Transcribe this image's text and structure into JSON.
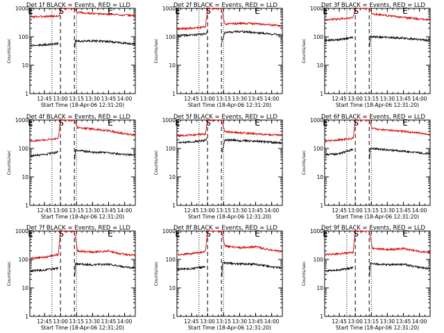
{
  "chart_data": [
    {
      "type": "line",
      "title": "Det 1f BLACK = Events, RED = LLD",
      "xlabel": "Start Time (18-Apr-06 12:31:20)",
      "ylabel": "Counts/sec",
      "yscale": "log",
      "ylim": [
        1,
        1000
      ],
      "y_ticks": [
        "1",
        "10",
        "100",
        "1000"
      ],
      "x_ticks": [
        "12:45",
        "13:00",
        "13:15",
        "13:30",
        "13:45",
        "14:00"
      ],
      "x_range": [
        "12:31:20",
        "14:10"
      ],
      "markers": [
        {
          "label": "E",
          "time": "12:31:20"
        },
        {
          "label": "S",
          "time": "13:00"
        },
        {
          "label": "E",
          "time": "13:46"
        }
      ],
      "vertical_lines": [
        {
          "time": "12:52",
          "style": "dotted"
        },
        {
          "time": "13:00",
          "style": "dashed"
        },
        {
          "time": "13:13",
          "style": "dashed"
        },
        {
          "time": "13:15",
          "style": "dotted"
        }
      ],
      "series": [
        {
          "name": "LLD",
          "color": "#d40000",
          "x": [
            "12:32",
            "12:45",
            "12:59",
            "13:00",
            "13:13",
            "13:16",
            "13:30",
            "13:45",
            "14:00",
            "14:10"
          ],
          "y": [
            500,
            520,
            540,
            1000,
            1000,
            720,
            650,
            620,
            580,
            550
          ]
        },
        {
          "name": "Events",
          "color": "#000000",
          "x": [
            "12:32",
            "12:45",
            "12:58",
            "13:13",
            "13:14",
            "13:16",
            "13:30",
            "13:45",
            "14:00",
            "14:10"
          ],
          "y": [
            50,
            52,
            58,
            30,
            72,
            70,
            72,
            68,
            60,
            55
          ]
        }
      ]
    },
    {
      "type": "line",
      "title": "Det 2f BLACK = Events, RED = LLD",
      "xlabel": "Start Time (18-Apr-06 12:31:20)",
      "ylabel": "Counts/sec",
      "yscale": "log",
      "ylim": [
        1,
        1000
      ],
      "y_ticks": [
        "1",
        "10",
        "100",
        "1000"
      ],
      "x_ticks": [
        "12:45",
        "13:00",
        "13:15",
        "13:30",
        "13:45",
        "14:00"
      ],
      "x_range": [
        "12:31:20",
        "14:10"
      ],
      "markers": [
        {
          "label": "E",
          "time": "12:31:20"
        },
        {
          "label": "S",
          "time": "13:00"
        },
        {
          "label": "E",
          "time": "13:46"
        }
      ],
      "vertical_lines": [
        {
          "time": "12:52",
          "style": "dotted"
        },
        {
          "time": "13:00",
          "style": "dashed"
        },
        {
          "time": "13:13",
          "style": "dashed"
        },
        {
          "time": "13:15",
          "style": "dotted"
        }
      ],
      "series": [
        {
          "name": "LLD",
          "color": "#d40000",
          "x": [
            "12:32",
            "12:45",
            "12:58",
            "13:00",
            "13:13",
            "13:16",
            "13:30",
            "13:45",
            "14:00",
            "14:10"
          ],
          "y": [
            190,
            200,
            220,
            1000,
            1000,
            280,
            300,
            290,
            260,
            240
          ]
        },
        {
          "name": "Events",
          "color": "#000000",
          "x": [
            "12:32",
            "12:45",
            "12:58",
            "13:00",
            "13:13",
            "13:16",
            "13:30",
            "13:45",
            "14:00",
            "14:10"
          ],
          "y": [
            110,
            115,
            125,
            160,
            60,
            140,
            155,
            140,
            125,
            115
          ]
        }
      ]
    },
    {
      "type": "line",
      "title": "Det 3f BLACK = Events, RED = LLD",
      "xlabel": "Start Time (18-Apr-06 12:31:20)",
      "ylabel": "Counts/sec",
      "yscale": "log",
      "ylim": [
        1,
        1000
      ],
      "y_ticks": [
        "1",
        "10",
        "100",
        "1000"
      ],
      "x_ticks": [
        "12:45",
        "13:00",
        "13:15",
        "13:30",
        "13:45",
        "14:00"
      ],
      "x_range": [
        "12:31:20",
        "14:10"
      ],
      "markers": [
        {
          "label": "E",
          "time": "12:31:20"
        },
        {
          "label": "S",
          "time": "13:00"
        },
        {
          "label": "E",
          "time": "13:46"
        }
      ],
      "vertical_lines": [
        {
          "time": "12:52",
          "style": "dotted"
        },
        {
          "time": "13:00",
          "style": "dashed"
        },
        {
          "time": "13:13",
          "style": "dashed"
        },
        {
          "time": "13:15",
          "style": "dotted"
        }
      ],
      "series": [
        {
          "name": "LLD",
          "color": "#d40000",
          "x": [
            "12:32",
            "12:45",
            "12:58",
            "13:00",
            "13:13",
            "13:16",
            "13:30",
            "13:45",
            "14:00",
            "14:10"
          ],
          "y": [
            400,
            420,
            480,
            1000,
            1000,
            650,
            550,
            480,
            420,
            400
          ]
        },
        {
          "name": "Events",
          "color": "#000000",
          "x": [
            "12:32",
            "12:45",
            "12:58",
            "13:13",
            "13:14",
            "13:16",
            "13:30",
            "13:45",
            "14:00",
            "14:10"
          ],
          "y": [
            75,
            80,
            95,
            30,
            100,
            100,
            95,
            90,
            80,
            75
          ]
        }
      ]
    },
    {
      "type": "line",
      "title": "Det 4f BLACK = Events, RED = LLD",
      "xlabel": "Start Time (18-Apr-06 12:31:20)",
      "ylabel": "Counts/sec",
      "yscale": "log",
      "ylim": [
        1,
        1000
      ],
      "y_ticks": [
        "1",
        "10",
        "100",
        "1000"
      ],
      "x_ticks": [
        "12:45",
        "13:00",
        "13:15",
        "13:30",
        "13:45",
        "14:00"
      ],
      "x_range": [
        "12:31:20",
        "14:10"
      ],
      "markers": [
        {
          "label": "E",
          "time": "12:31:20"
        },
        {
          "label": "S",
          "time": "13:00"
        },
        {
          "label": "E",
          "time": "13:46"
        }
      ],
      "vertical_lines": [
        {
          "time": "12:52",
          "style": "dotted"
        },
        {
          "time": "13:00",
          "style": "dashed"
        },
        {
          "time": "13:13",
          "style": "dashed"
        },
        {
          "time": "13:15",
          "style": "dotted"
        }
      ],
      "series": [
        {
          "name": "LLD",
          "color": "#d40000",
          "x": [
            "12:32",
            "12:45",
            "12:58",
            "13:00",
            "13:13",
            "13:16",
            "13:30",
            "13:45",
            "14:00",
            "14:10"
          ],
          "y": [
            180,
            200,
            230,
            1000,
            1000,
            550,
            480,
            420,
            330,
            300
          ]
        },
        {
          "name": "Events",
          "color": "#000000",
          "x": [
            "12:32",
            "12:45",
            "12:58",
            "13:13",
            "13:14",
            "13:16",
            "13:30",
            "13:45",
            "14:00",
            "14:10"
          ],
          "y": [
            55,
            60,
            75,
            30,
            90,
            85,
            75,
            70,
            62,
            58
          ]
        }
      ]
    },
    {
      "type": "line",
      "title": "Det 5f BLACK = Events, RED = LLD",
      "xlabel": "Start Time (18-Apr-06 12:31:20)",
      "ylabel": "Counts/sec",
      "yscale": "log",
      "ylim": [
        1,
        1000
      ],
      "y_ticks": [
        "1",
        "10",
        "100",
        "1000"
      ],
      "x_ticks": [
        "12:45",
        "13:00",
        "13:15",
        "13:30",
        "13:45",
        "14:00"
      ],
      "x_range": [
        "12:31:20",
        "14:10"
      ],
      "markers": [
        {
          "label": "E",
          "time": "12:31:20"
        },
        {
          "label": "S",
          "time": "13:00"
        },
        {
          "label": "E",
          "time": "13:46"
        }
      ],
      "vertical_lines": [
        {
          "time": "12:52",
          "style": "dotted"
        },
        {
          "time": "13:00",
          "style": "dashed"
        },
        {
          "time": "13:13",
          "style": "dashed"
        },
        {
          "time": "13:15",
          "style": "dotted"
        }
      ],
      "series": [
        {
          "name": "LLD",
          "color": "#d40000",
          "x": [
            "12:32",
            "12:45",
            "12:58",
            "13:00",
            "13:13",
            "13:16",
            "13:30",
            "13:45",
            "14:00",
            "14:10"
          ],
          "y": [
            280,
            300,
            320,
            1000,
            1000,
            400,
            350,
            330,
            300,
            290
          ]
        },
        {
          "name": "Events",
          "color": "#000000",
          "x": [
            "12:32",
            "12:45",
            "12:58",
            "13:00",
            "13:13",
            "13:16",
            "13:30",
            "13:45",
            "14:00",
            "14:10"
          ],
          "y": [
            160,
            170,
            190,
            230,
            60,
            200,
            190,
            180,
            165,
            155
          ]
        }
      ]
    },
    {
      "type": "line",
      "title": "Det 6f BLACK = Events, RED = LLD",
      "xlabel": "Start Time (18-Apr-06 12:31:20)",
      "ylabel": "Counts/sec",
      "yscale": "log",
      "ylim": [
        1,
        1000
      ],
      "y_ticks": [
        "1",
        "10",
        "100",
        "1000"
      ],
      "x_ticks": [
        "12:45",
        "13:00",
        "13:15",
        "13:30",
        "13:45",
        "14:00"
      ],
      "x_range": [
        "12:31:20",
        "14:10"
      ],
      "markers": [
        {
          "label": "E",
          "time": "12:31:20"
        },
        {
          "label": "S",
          "time": "13:00"
        },
        {
          "label": "E",
          "time": "13:46"
        }
      ],
      "vertical_lines": [
        {
          "time": "12:52",
          "style": "dotted"
        },
        {
          "time": "13:00",
          "style": "dashed"
        },
        {
          "time": "13:13",
          "style": "dashed"
        },
        {
          "time": "13:15",
          "style": "dotted"
        }
      ],
      "series": [
        {
          "name": "LLD",
          "color": "#d40000",
          "x": [
            "12:32",
            "12:45",
            "12:58",
            "13:00",
            "13:13",
            "13:16",
            "13:30",
            "13:45",
            "14:00",
            "14:10"
          ],
          "y": [
            180,
            200,
            230,
            1000,
            1000,
            500,
            450,
            400,
            350,
            320
          ]
        },
        {
          "name": "Events",
          "color": "#000000",
          "x": [
            "12:32",
            "12:45",
            "12:58",
            "13:13",
            "13:14",
            "13:16",
            "13:30",
            "13:45",
            "14:00",
            "14:10"
          ],
          "y": [
            60,
            65,
            95,
            30,
            100,
            100,
            90,
            80,
            70,
            65
          ]
        }
      ]
    },
    {
      "type": "line",
      "title": "Det 7f BLACK = Events, RED = LLD",
      "xlabel": "Start Time (18-Apr-06 12:31:20)",
      "ylabel": "Counts/sec",
      "yscale": "log",
      "ylim": [
        1,
        1000
      ],
      "y_ticks": [
        "1",
        "10",
        "100",
        "1000"
      ],
      "x_ticks": [
        "12:45",
        "13:00",
        "13:15",
        "13:30",
        "13:45",
        "14:00"
      ],
      "x_range": [
        "12:31:20",
        "14:10"
      ],
      "markers": [
        {
          "label": "E",
          "time": "12:31:20"
        },
        {
          "label": "S",
          "time": "13:00"
        },
        {
          "label": "E",
          "time": "13:46"
        }
      ],
      "vertical_lines": [
        {
          "time": "12:52",
          "style": "dotted"
        },
        {
          "time": "13:00",
          "style": "dashed"
        },
        {
          "time": "13:13",
          "style": "dashed"
        },
        {
          "time": "13:15",
          "style": "dotted"
        }
      ],
      "series": [
        {
          "name": "LLD",
          "color": "#d40000",
          "x": [
            "12:32",
            "12:45",
            "12:58",
            "13:00",
            "13:13",
            "13:16",
            "13:30",
            "13:45",
            "14:00",
            "14:10"
          ],
          "y": [
            110,
            120,
            150,
            1000,
            1000,
            200,
            180,
            200,
            150,
            140
          ]
        },
        {
          "name": "Events",
          "color": "#000000",
          "x": [
            "12:32",
            "12:45",
            "12:58",
            "13:13",
            "13:14",
            "13:16",
            "13:30",
            "13:45",
            "14:00",
            "14:10"
          ],
          "y": [
            40,
            42,
            50,
            15,
            70,
            70,
            65,
            68,
            55,
            50
          ]
        }
      ]
    },
    {
      "type": "line",
      "title": "Det 8f BLACK = Events, RED = LLD",
      "xlabel": "Start Time (18-Apr-06 12:31:20)",
      "ylabel": "Counts/sec",
      "yscale": "log",
      "ylim": [
        1,
        1000
      ],
      "y_ticks": [
        "1",
        "10",
        "100",
        "1000"
      ],
      "x_ticks": [
        "12:45",
        "13:00",
        "13:15",
        "13:30",
        "13:45",
        "14:00"
      ],
      "x_range": [
        "12:31:20",
        "14:10"
      ],
      "markers": [
        {
          "label": "E",
          "time": "12:31:20"
        },
        {
          "label": "S",
          "time": "13:00"
        },
        {
          "label": "E",
          "time": "13:46"
        }
      ],
      "vertical_lines": [
        {
          "time": "12:52",
          "style": "dotted"
        },
        {
          "time": "13:00",
          "style": "dashed"
        },
        {
          "time": "13:13",
          "style": "dashed"
        },
        {
          "time": "13:15",
          "style": "dotted"
        }
      ],
      "series": [
        {
          "name": "LLD",
          "color": "#d40000",
          "x": [
            "12:32",
            "12:45",
            "12:58",
            "13:00",
            "13:13",
            "13:16",
            "13:30",
            "13:45",
            "14:00",
            "14:10"
          ],
          "y": [
            150,
            160,
            190,
            1000,
            1000,
            300,
            260,
            280,
            210,
            190
          ]
        },
        {
          "name": "Events",
          "color": "#000000",
          "x": [
            "12:32",
            "12:45",
            "12:58",
            "13:13",
            "13:14",
            "13:16",
            "13:30",
            "13:45",
            "14:00",
            "14:10"
          ],
          "y": [
            45,
            48,
            55,
            15,
            75,
            75,
            70,
            68,
            55,
            50
          ]
        }
      ]
    },
    {
      "type": "line",
      "title": "Det 9f BLACK = Events, RED = LLD",
      "xlabel": "Start Time (18-Apr-06 12:31:20)",
      "ylabel": "Counts/sec",
      "yscale": "log",
      "ylim": [
        1,
        1000
      ],
      "y_ticks": [
        "1",
        "10",
        "100",
        "1000"
      ],
      "x_ticks": [
        "12:45",
        "13:00",
        "13:15",
        "13:30",
        "13:45",
        "14:00"
      ],
      "x_range": [
        "12:31:20",
        "14:10"
      ],
      "markers": [
        {
          "label": "E",
          "time": "12:31:20"
        },
        {
          "label": "S",
          "time": "13:00"
        },
        {
          "label": "E",
          "time": "13:46"
        }
      ],
      "vertical_lines": [
        {
          "time": "12:52",
          "style": "dotted"
        },
        {
          "time": "13:00",
          "style": "dashed"
        },
        {
          "time": "13:13",
          "style": "dashed"
        },
        {
          "time": "13:15",
          "style": "dotted"
        }
      ],
      "series": [
        {
          "name": "LLD",
          "color": "#d40000",
          "x": [
            "12:32",
            "12:45",
            "12:58",
            "13:00",
            "13:13",
            "13:16",
            "13:30",
            "13:45",
            "14:00",
            "14:10"
          ],
          "y": [
            150,
            160,
            180,
            1000,
            1000,
            250,
            220,
            240,
            190,
            180
          ]
        },
        {
          "name": "Events",
          "color": "#000000",
          "x": [
            "12:32",
            "12:45",
            "12:58",
            "13:13",
            "13:14",
            "13:16",
            "13:30",
            "13:45",
            "14:00",
            "14:10"
          ],
          "y": [
            40,
            42,
            52,
            15,
            70,
            70,
            65,
            68,
            52,
            48
          ]
        }
      ]
    }
  ]
}
